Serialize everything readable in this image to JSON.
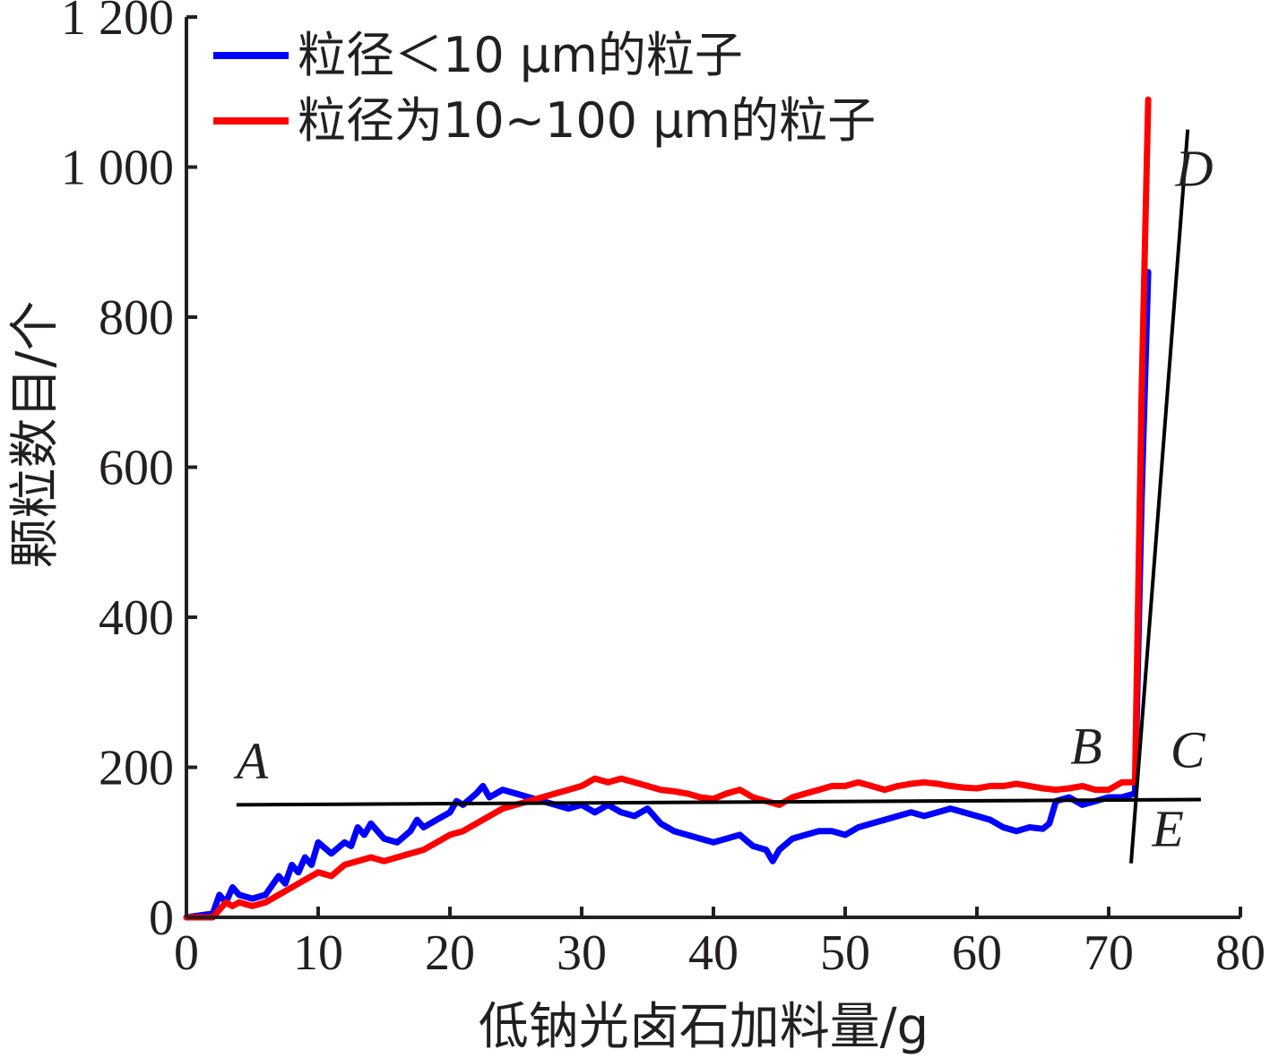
{
  "chart_data": {
    "type": "line",
    "xlabel": "低钠光卤石加料量/g",
    "ylabel": "颗粒数目/个",
    "xlim": [
      0,
      80
    ],
    "ylim": [
      0,
      1200
    ],
    "x_ticks": [
      0,
      10,
      20,
      30,
      40,
      50,
      60,
      70,
      80
    ],
    "x_tick_labels": [
      "0",
      "10",
      "20",
      "30",
      "40",
      "50",
      "60",
      "70",
      "80"
    ],
    "y_ticks": [
      0,
      200,
      400,
      600,
      800,
      1000,
      1200
    ],
    "y_tick_labels": [
      "0",
      "200",
      "400",
      "600",
      "800",
      "1 000",
      "1 200"
    ],
    "grid": false,
    "legend_position": "top-left",
    "series": [
      {
        "name": "粒径＜10 μm的粒子",
        "color": "#0000ff",
        "x": [
          0,
          2,
          2.5,
          3,
          3.5,
          4,
          5,
          6,
          7,
          7.5,
          8,
          8.5,
          9,
          9.5,
          10,
          11,
          12,
          12.5,
          13,
          13.5,
          14,
          15,
          16,
          17,
          17.5,
          18,
          19,
          20,
          20.5,
          21,
          22,
          22.5,
          23,
          24,
          25,
          26,
          27,
          28,
          29,
          30,
          31,
          32,
          33,
          34,
          35,
          36,
          37,
          38,
          39,
          40,
          41,
          42,
          43,
          44,
          44.5,
          45,
          46,
          47,
          48,
          49,
          50,
          51,
          52,
          53,
          54,
          55,
          56,
          57,
          58,
          59,
          60,
          61,
          62,
          63,
          64,
          65,
          65.5,
          66,
          67,
          68,
          69,
          70,
          71,
          72,
          72.5,
          73
        ],
        "y": [
          0,
          5,
          30,
          20,
          40,
          30,
          25,
          30,
          55,
          45,
          70,
          60,
          80,
          70,
          100,
          85,
          100,
          95,
          120,
          110,
          125,
          105,
          100,
          115,
          130,
          120,
          130,
          140,
          155,
          150,
          165,
          175,
          160,
          170,
          165,
          160,
          155,
          150,
          145,
          150,
          140,
          150,
          140,
          135,
          145,
          125,
          115,
          110,
          105,
          100,
          105,
          110,
          95,
          90,
          75,
          90,
          105,
          110,
          115,
          115,
          110,
          120,
          125,
          130,
          135,
          140,
          135,
          140,
          145,
          140,
          135,
          130,
          120,
          115,
          120,
          118,
          125,
          155,
          160,
          150,
          155,
          160,
          160,
          165,
          560,
          860
        ]
      },
      {
        "name": "粒径为10~100 μm的粒子",
        "color": "#ff0000",
        "x": [
          0,
          2,
          3,
          3.5,
          4,
          5,
          6,
          7,
          8,
          9,
          10,
          11,
          12,
          13,
          14,
          15,
          16,
          17,
          18,
          19,
          20,
          21,
          22,
          23,
          24,
          25,
          26,
          27,
          28,
          29,
          30,
          31,
          32,
          33,
          34,
          35,
          36,
          37,
          38,
          39,
          40,
          41,
          42,
          43,
          44,
          45,
          46,
          47,
          48,
          49,
          50,
          51,
          52,
          53,
          54,
          55,
          56,
          57,
          58,
          59,
          60,
          61,
          62,
          63,
          64,
          65,
          66,
          67,
          68,
          69,
          70,
          71,
          72,
          72.5,
          73
        ],
        "y": [
          0,
          0,
          20,
          15,
          20,
          15,
          20,
          30,
          40,
          50,
          60,
          55,
          70,
          75,
          80,
          75,
          80,
          85,
          90,
          100,
          110,
          115,
          125,
          135,
          145,
          150,
          155,
          160,
          165,
          170,
          175,
          185,
          180,
          185,
          180,
          175,
          170,
          168,
          165,
          160,
          158,
          165,
          170,
          160,
          155,
          150,
          160,
          165,
          170,
          175,
          175,
          180,
          175,
          170,
          175,
          178,
          180,
          178,
          175,
          173,
          172,
          175,
          175,
          178,
          175,
          172,
          170,
          172,
          175,
          170,
          170,
          180,
          180,
          700,
          1090
        ]
      }
    ],
    "annotations": [
      {
        "label": "A",
        "x": 5,
        "y": 185
      },
      {
        "label": "B",
        "x": 68.3,
        "y": 205
      },
      {
        "label": "C",
        "x": 76,
        "y": 200
      },
      {
        "label": "D",
        "x": 76.5,
        "y": 975
      },
      {
        "label": "E",
        "x": 74.5,
        "y": 95
      }
    ],
    "reference_lines": [
      {
        "from": [
          3.8,
          150
        ],
        "to": [
          77,
          157
        ]
      },
      {
        "from": [
          71.7,
          72
        ],
        "to": [
          76,
          1050
        ]
      }
    ]
  }
}
